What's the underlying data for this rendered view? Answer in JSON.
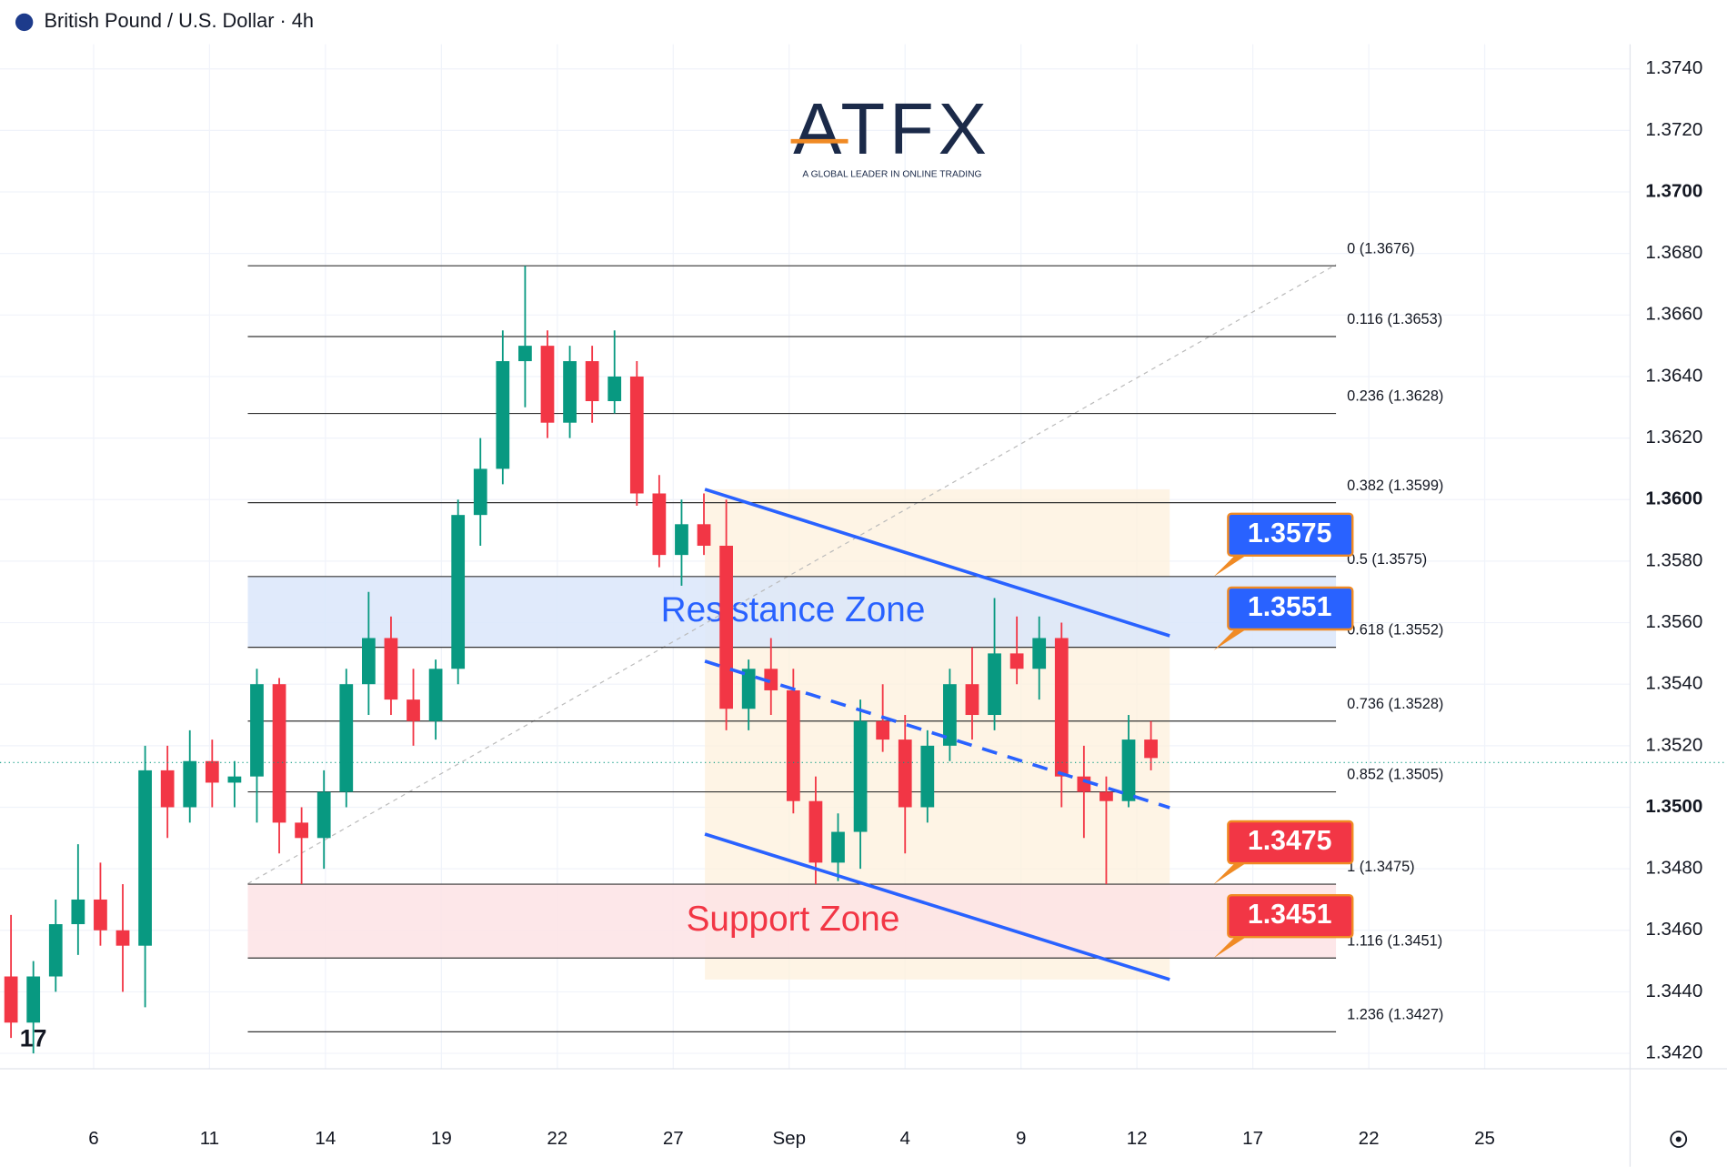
{
  "header": {
    "symbol": "British Pound / U.S. Dollar · 4h"
  },
  "logo": {
    "brand": "ATFX",
    "tagline": "A GLOBAL LEADER IN ONLINE TRADING"
  },
  "chart_data": {
    "type": "candlestick",
    "up_color": "#089981",
    "down_color": "#f23645",
    "ylim": [
      1.3415,
      1.3748
    ],
    "yticks": [
      {
        "value": 1.374,
        "label": "1.3740"
      },
      {
        "value": 1.372,
        "label": "1.3720"
      },
      {
        "value": 1.37,
        "label": "1.3700"
      },
      {
        "value": 1.368,
        "label": "1.3680"
      },
      {
        "value": 1.366,
        "label": "1.3660"
      },
      {
        "value": 1.364,
        "label": "1.3640"
      },
      {
        "value": 1.362,
        "label": "1.3620"
      },
      {
        "value": 1.36,
        "label": "1.3600"
      },
      {
        "value": 1.358,
        "label": "1.3580"
      },
      {
        "value": 1.356,
        "label": "1.3560"
      },
      {
        "value": 1.354,
        "label": "1.3540"
      },
      {
        "value": 1.352,
        "label": "1.3520"
      },
      {
        "value": 1.35,
        "label": "1.3500"
      },
      {
        "value": 1.348,
        "label": "1.3480"
      },
      {
        "value": 1.346,
        "label": "1.3460"
      },
      {
        "value": 1.344,
        "label": "1.3440"
      },
      {
        "value": 1.342,
        "label": "1.3420"
      }
    ],
    "categories": [
      "6",
      "11",
      "14",
      "19",
      "22",
      "27",
      "Sep",
      "4",
      "9",
      "12",
      "17",
      "22",
      "25"
    ],
    "open": [
      1.3445,
      1.343,
      1.3445,
      1.3462,
      1.347,
      1.346,
      1.3455,
      1.3512,
      1.35,
      1.3515,
      1.3508,
      1.351,
      1.354,
      1.3495,
      1.349,
      1.3505,
      1.354,
      1.3555,
      1.3535,
      1.3528,
      1.3545,
      1.3595,
      1.361,
      1.3645,
      1.365,
      1.3625,
      1.3645,
      1.3632,
      1.364,
      1.3602,
      1.3582,
      1.3592,
      1.3585,
      1.3532,
      1.3545,
      1.3538,
      1.3502,
      1.3482,
      1.3492,
      1.3528,
      1.3522,
      1.35,
      1.352,
      1.354,
      1.353,
      1.355,
      1.3545,
      1.3555,
      1.351,
      1.3505,
      1.3502,
      1.3522
    ],
    "high": [
      1.3465,
      1.345,
      1.347,
      1.3488,
      1.3482,
      1.3475,
      1.352,
      1.352,
      1.3525,
      1.3522,
      1.3515,
      1.3545,
      1.3542,
      1.35,
      1.3512,
      1.3545,
      1.357,
      1.3562,
      1.3545,
      1.3548,
      1.36,
      1.362,
      1.3655,
      1.3676,
      1.3655,
      1.365,
      1.365,
      1.3655,
      1.3645,
      1.3608,
      1.36,
      1.3602,
      1.36,
      1.3548,
      1.3555,
      1.3545,
      1.351,
      1.3498,
      1.3535,
      1.354,
      1.353,
      1.3525,
      1.3545,
      1.3552,
      1.3568,
      1.3562,
      1.3562,
      1.356,
      1.352,
      1.351,
      1.353,
      1.3528
    ],
    "low": [
      1.3425,
      1.342,
      1.344,
      1.3452,
      1.3455,
      1.344,
      1.3435,
      1.349,
      1.3495,
      1.35,
      1.35,
      1.3495,
      1.3485,
      1.3475,
      1.348,
      1.35,
      1.353,
      1.353,
      1.352,
      1.3522,
      1.354,
      1.3585,
      1.3605,
      1.363,
      1.362,
      1.362,
      1.3625,
      1.3628,
      1.3598,
      1.3578,
      1.3572,
      1.3582,
      1.3525,
      1.3525,
      1.353,
      1.3498,
      1.3475,
      1.3476,
      1.348,
      1.3518,
      1.3485,
      1.3495,
      1.3515,
      1.3522,
      1.3525,
      1.354,
      1.3535,
      1.35,
      1.349,
      1.3475,
      1.35,
      1.3512
    ],
    "close": [
      1.343,
      1.3445,
      1.3462,
      1.347,
      1.346,
      1.3455,
      1.3512,
      1.35,
      1.3515,
      1.3508,
      1.351,
      1.354,
      1.3495,
      1.349,
      1.3505,
      1.354,
      1.3555,
      1.3535,
      1.3528,
      1.3545,
      1.3595,
      1.361,
      1.3645,
      1.365,
      1.3625,
      1.3645,
      1.3632,
      1.364,
      1.3602,
      1.3582,
      1.3592,
      1.3585,
      1.3532,
      1.3545,
      1.3538,
      1.3502,
      1.3482,
      1.3492,
      1.3528,
      1.3522,
      1.35,
      1.352,
      1.354,
      1.353,
      1.355,
      1.3545,
      1.3555,
      1.351,
      1.3505,
      1.3502,
      1.3522,
      1.3516
    ],
    "fib_levels": [
      {
        "value": 1.3676,
        "label": "0 (1.3676)"
      },
      {
        "value": 1.3653,
        "label": "0.116 (1.3653)"
      },
      {
        "value": 1.3628,
        "label": "0.236 (1.3628)"
      },
      {
        "value": 1.3599,
        "label": "0.382 (1.3599)"
      },
      {
        "value": 1.3575,
        "label": "0.5 (1.3575)"
      },
      {
        "value": 1.3552,
        "label": "0.618 (1.3552)"
      },
      {
        "value": 1.3528,
        "label": "0.736 (1.3528)"
      },
      {
        "value": 1.3505,
        "label": "0.852 (1.3505)"
      },
      {
        "value": 1.3475,
        "label": "1 (1.3475)"
      },
      {
        "value": 1.3451,
        "label": "1.116 (1.3451)"
      },
      {
        "value": 1.3427,
        "label": "1.236 (1.3427)"
      }
    ],
    "zones": [
      {
        "label": "Resistance Zone",
        "top": 1.3575,
        "bottom": 1.3552,
        "fill": "#dbe6fa",
        "text_color": "#2962ff"
      },
      {
        "label": "Support Zone",
        "top": 1.3475,
        "bottom": 1.3451,
        "fill": "#fde3e5",
        "text_color": "#f23645"
      }
    ],
    "badges": [
      {
        "value": 1.3575,
        "color": "#2962ff"
      },
      {
        "value": 1.3551,
        "color": "#2962ff"
      },
      {
        "value": 1.3475,
        "color": "#f23645"
      },
      {
        "value": 1.3451,
        "color": "#f23645"
      }
    ]
  }
}
